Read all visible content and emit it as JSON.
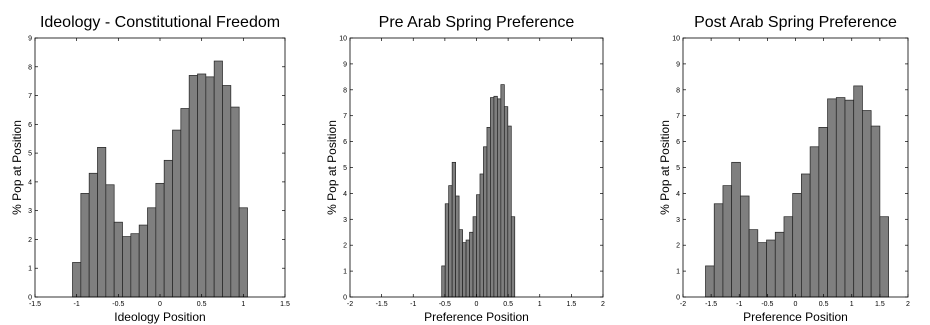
{
  "chart_data": [
    {
      "type": "histogram",
      "title": "Ideology - Constitutional Freedom",
      "xlabel": "Ideology Position",
      "ylabel": "% Pop at Position",
      "bins": [
        -1.05,
        -0.95,
        -0.85,
        -0.75,
        -0.65,
        -0.55,
        -0.45,
        -0.35,
        -0.25,
        -0.15,
        -0.05,
        0.05,
        0.15,
        0.25,
        0.35,
        0.45,
        0.55,
        0.65,
        0.75,
        0.85,
        0.95,
        1.05
      ],
      "values": [
        1.2,
        3.6,
        4.3,
        5.2,
        3.9,
        2.6,
        2.1,
        2.2,
        2.5,
        3.1,
        3.95,
        4.75,
        5.8,
        6.55,
        7.7,
        7.75,
        7.65,
        8.2,
        7.35,
        6.6,
        3.1
      ],
      "color": "#7f7f7f",
      "xlim": [
        -1.5,
        1.5
      ],
      "xticks": [
        -1.5,
        -1,
        -0.5,
        0,
        0.5,
        1,
        1.5
      ],
      "ylim": [
        0,
        9
      ],
      "yticks": [
        0,
        1,
        2,
        3,
        4,
        5,
        6,
        7,
        8,
        9
      ]
    },
    {
      "type": "histogram",
      "title": "Pre Arab Spring Preference",
      "xlabel": "Preference Position",
      "ylabel": "% Pop at Position",
      "bins": [
        -0.55,
        -0.495,
        -0.44,
        -0.385,
        -0.33,
        -0.275,
        -0.22,
        -0.165,
        -0.11,
        -0.055,
        0,
        0.055,
        0.11,
        0.165,
        0.22,
        0.275,
        0.33,
        0.385,
        0.44,
        0.495,
        0.55,
        0.605
      ],
      "values": [
        1.2,
        3.6,
        4.3,
        5.2,
        3.9,
        2.6,
        2.1,
        2.2,
        2.5,
        3.1,
        3.95,
        4.75,
        5.8,
        6.55,
        7.7,
        7.75,
        7.65,
        8.2,
        7.35,
        6.6,
        3.1
      ],
      "color": "#7f7f7f",
      "xlim": [
        -2,
        2
      ],
      "xticks": [
        -2,
        -1.5,
        -1,
        -0.5,
        0,
        0.5,
        1,
        1.5,
        2
      ],
      "ylim": [
        0,
        10
      ],
      "yticks": [
        0,
        1,
        2,
        3,
        4,
        5,
        6,
        7,
        8,
        9,
        10
      ]
    },
    {
      "type": "histogram",
      "title": "Post Arab Spring Preference",
      "xlabel": "Preference Position",
      "ylabel": "% Pop at Position",
      "bins": [
        -1.6,
        -1.445,
        -1.29,
        -1.135,
        -0.98,
        -0.825,
        -0.67,
        -0.515,
        -0.36,
        -0.205,
        -0.05,
        0.105,
        0.26,
        0.415,
        0.57,
        0.725,
        0.88,
        1.035,
        1.19,
        1.345,
        1.5,
        1.655
      ],
      "values": [
        1.2,
        3.6,
        4.3,
        5.2,
        3.9,
        2.6,
        2.1,
        2.2,
        2.5,
        3.1,
        4.0,
        4.75,
        5.8,
        6.55,
        7.65,
        7.7,
        7.6,
        8.15,
        7.2,
        6.6,
        3.1
      ],
      "color": "#7f7f7f",
      "xlim": [
        -2,
        2
      ],
      "xticks": [
        -2,
        -1.5,
        -1,
        -0.5,
        0,
        0.5,
        1,
        1.5,
        2
      ],
      "ylim": [
        0,
        10
      ],
      "yticks": [
        0,
        1,
        2,
        3,
        4,
        5,
        6,
        7,
        8,
        9,
        10
      ]
    }
  ]
}
